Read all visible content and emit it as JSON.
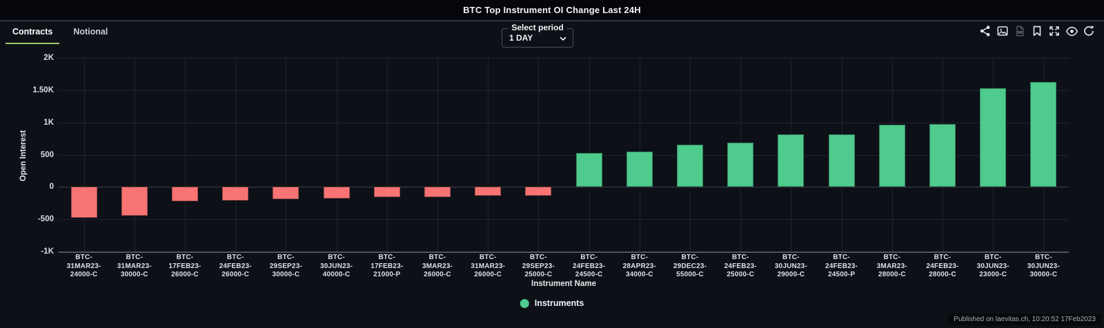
{
  "header": {
    "title": "BTC Top Instrument OI Change Last 24H",
    "tabs": [
      {
        "label": "Contracts",
        "active": true
      },
      {
        "label": "Notional",
        "active": false
      }
    ],
    "period_select": {
      "label": "Select period",
      "value": "1 DAY"
    },
    "toolbar_icons": [
      "share-icon",
      "image-export-icon",
      "csv-export-icon",
      "bookmark-icon",
      "fullscreen-icon",
      "visibility-icon",
      "refresh-icon"
    ]
  },
  "footer": {
    "published": "Published on laevitas.ch, 10:20:52 17Feb2023"
  },
  "colors": {
    "background": "#0d1117",
    "positive": "#4ecb8d",
    "negative": "#f87474",
    "tab_underline": "#a3c96a",
    "grid": "#1d2330",
    "axis_line": "#4d5564"
  },
  "chart_data": {
    "type": "bar",
    "title": "BTC Top Instrument OI Change Last 24H",
    "xlabel": "Instrument Name",
    "ylabel": "Open Interest",
    "ylim": [
      -1000,
      2000
    ],
    "grid": true,
    "legend_position": "bottom",
    "legend": [
      {
        "name": "Instruments",
        "color": "#4ecb8d"
      }
    ],
    "yticks": [
      {
        "label": "2K",
        "value": 2000
      },
      {
        "label": "1.50K",
        "value": 1500
      },
      {
        "label": "1K",
        "value": 1000
      },
      {
        "label": "500",
        "value": 500
      },
      {
        "label": "0",
        "value": 0
      },
      {
        "label": "-500",
        "value": -500
      },
      {
        "label": "-1K",
        "value": -1000
      }
    ],
    "series": [
      {
        "name": "Instruments",
        "points": [
          {
            "category": "BTC-31MAR23-24000-C",
            "value": -480
          },
          {
            "category": "BTC-31MAR23-30000-C",
            "value": -450
          },
          {
            "category": "BTC-17FEB23-26000-C",
            "value": -220
          },
          {
            "category": "BTC-24FEB23-26000-C",
            "value": -210
          },
          {
            "category": "BTC-29SEP23-30000-C",
            "value": -185
          },
          {
            "category": "BTC-30JUN23-40000-C",
            "value": -180
          },
          {
            "category": "BTC-17FEB23-21000-P",
            "value": -160
          },
          {
            "category": "BTC-3MAR23-26000-C",
            "value": -155
          },
          {
            "category": "BTC-31MAR23-26000-C",
            "value": -140
          },
          {
            "category": "BTC-29SEP23-25000-C",
            "value": -130
          },
          {
            "category": "BTC-24FEB23-24500-C",
            "value": 530
          },
          {
            "category": "BTC-28APR23-34000-C",
            "value": 545
          },
          {
            "category": "BTC-29DEC23-55000-C",
            "value": 650
          },
          {
            "category": "BTC-24FEB23-25000-C",
            "value": 690
          },
          {
            "category": "BTC-30JUN23-29000-C",
            "value": 810
          },
          {
            "category": "BTC-24FEB23-24500-P",
            "value": 820
          },
          {
            "category": "BTC-3MAR23-28000-C",
            "value": 965
          },
          {
            "category": "BTC-24FEB23-28000-C",
            "value": 975
          },
          {
            "category": "BTC-30JUN23-23000-C",
            "value": 1530
          },
          {
            "category": "BTC-30JUN23-30000-C",
            "value": 1630
          }
        ]
      }
    ]
  }
}
